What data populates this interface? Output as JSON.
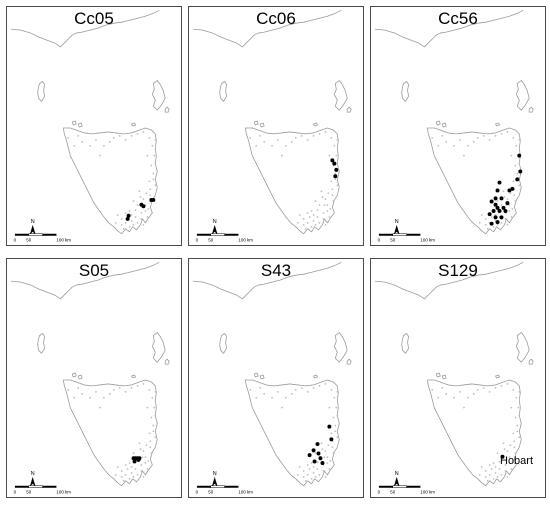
{
  "panels": [
    {
      "id": "Cc05",
      "label": "Cc05",
      "occurrences": [
        [
          148,
          63
        ],
        [
          146,
          63
        ],
        [
          138,
          67
        ],
        [
          136,
          66
        ],
        [
          123,
          73
        ],
        [
          122,
          75
        ]
      ]
    },
    {
      "id": "Cc06",
      "label": "Cc06",
      "occurrences": [
        [
          145,
          38
        ],
        [
          147,
          40
        ],
        [
          149,
          44
        ],
        [
          148,
          48
        ]
      ]
    },
    {
      "id": "Cc56",
      "label": "Cc56",
      "occurrences": [
        [
          150,
          35
        ],
        [
          151,
          45
        ],
        [
          148,
          50
        ],
        [
          143,
          56
        ],
        [
          140,
          57
        ],
        [
          130,
          52
        ],
        [
          128,
          57
        ],
        [
          126,
          62
        ],
        [
          132,
          62
        ],
        [
          122,
          64
        ],
        [
          126,
          66
        ],
        [
          128,
          68
        ],
        [
          124,
          70
        ],
        [
          120,
          72
        ],
        [
          126,
          74
        ],
        [
          122,
          78
        ],
        [
          128,
          77
        ],
        [
          132,
          74
        ],
        [
          136,
          70
        ],
        [
          138,
          65
        ],
        [
          130,
          70
        ],
        [
          134,
          68
        ]
      ]
    },
    {
      "id": "S05",
      "label": "S05",
      "occurrences": [
        [
          128,
          67
        ],
        [
          130,
          67
        ],
        [
          132,
          67
        ],
        [
          134,
          67
        ],
        [
          129,
          69
        ],
        [
          133,
          68
        ]
      ]
    },
    {
      "id": "S43",
      "label": "S43",
      "occurrences": [
        [
          142,
          47
        ],
        [
          144,
          55
        ],
        [
          130,
          58
        ],
        [
          126,
          62
        ],
        [
          131,
          64
        ],
        [
          122,
          65
        ],
        [
          127,
          69
        ],
        [
          133,
          67
        ],
        [
          135,
          70
        ]
      ]
    },
    {
      "id": "S129",
      "label": "S129",
      "occurrences": [
        [
          133,
          66
        ]
      ],
      "annotation": "Hobart"
    }
  ],
  "scale_bar": {
    "labels": [
      "0",
      "50",
      "100 km"
    ]
  },
  "north_arrow": {
    "label": "N"
  },
  "colors": {
    "coast": "#9a9a9a",
    "occurrence": "#000000",
    "site": "#bdbdbd",
    "border": "#4a4a4a"
  }
}
